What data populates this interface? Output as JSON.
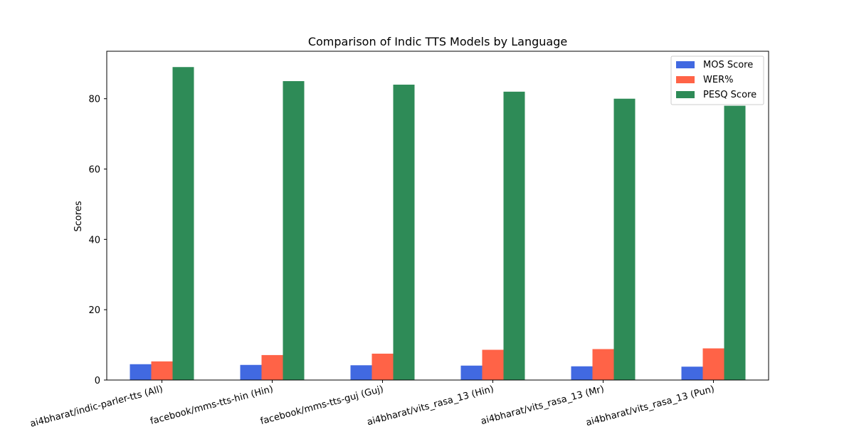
{
  "chart_data": {
    "type": "bar",
    "title": "Comparison of Indic TTS Models by Language",
    "xlabel": "",
    "ylabel": "Scores",
    "categories": [
      "ai4bharat/indic-parler-tts (All)",
      "facebook/mms-tts-hin (Hin)",
      "facebook/mms-tts-guj (Guj)",
      "ai4bharat/vits_rasa_13 (Hin)",
      "ai4bharat/vits_rasa_13 (Mr)",
      "ai4bharat/vits_rasa_13 (Pun)"
    ],
    "series": [
      {
        "name": "MOS Score",
        "color": "#4169e1",
        "values": [
          4.5,
          4.3,
          4.2,
          4.1,
          3.9,
          3.8
        ]
      },
      {
        "name": "WER%",
        "color": "#ff6347",
        "values": [
          5.3,
          7.1,
          7.5,
          8.6,
          8.8,
          9.0
        ]
      },
      {
        "name": "PESQ Score",
        "color": "#2e8b57",
        "values": [
          89,
          85,
          84,
          82,
          80,
          78
        ]
      }
    ],
    "ylim": [
      0,
      93.5
    ],
    "yticks": [
      0,
      20,
      40,
      60,
      80
    ],
    "grid": false,
    "legend_position": "top-right"
  }
}
